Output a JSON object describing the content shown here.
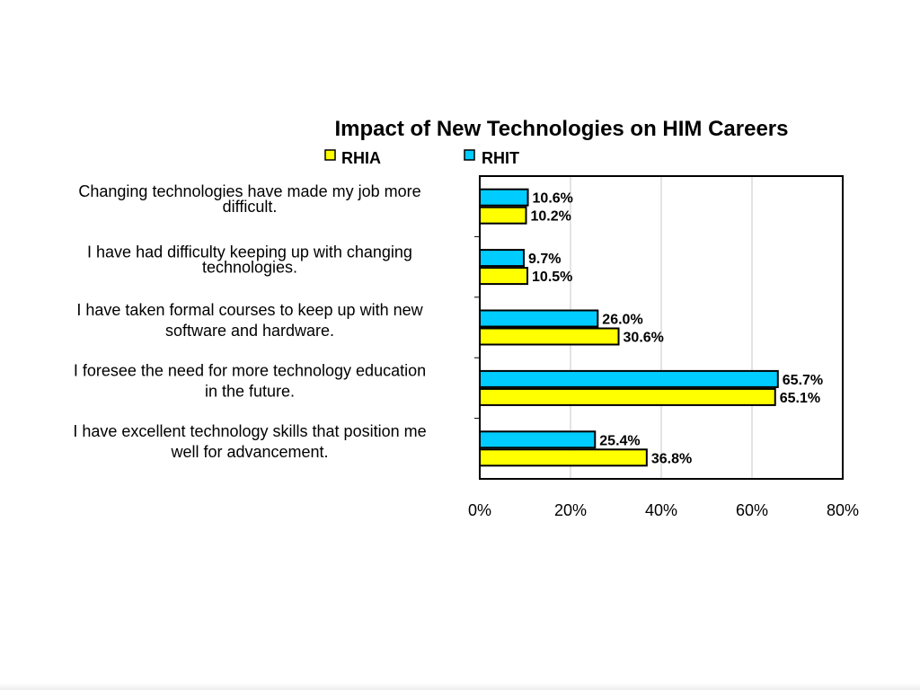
{
  "chart_data": {
    "type": "bar",
    "orientation": "horizontal",
    "title": "Impact of New Technologies on HIM Careers",
    "xlabel": "",
    "ylabel": "",
    "xlim": [
      0,
      80
    ],
    "x_ticks": [
      0,
      20,
      40,
      60,
      80
    ],
    "x_tick_labels": [
      "0%",
      "20%",
      "40%",
      "60%",
      "80%"
    ],
    "value_suffix": "%",
    "grid": "vertical gridlines",
    "legend_position": "top",
    "categories": [
      [
        "Changing technologies have made my job more",
        "difficult."
      ],
      [
        "I have had difficulty keeping up with changing",
        "technologies."
      ],
      [
        "I have taken formal courses to keep up with new",
        "software and hardware."
      ],
      [
        "I foresee the need for more technology education",
        "in the future."
      ],
      [
        "I have excellent technology skills that position me",
        "well for advancement."
      ]
    ],
    "series": [
      {
        "name": "RHIA",
        "color": "#ffff00",
        "values": [
          10.2,
          10.5,
          30.6,
          65.1,
          36.8
        ],
        "labels": [
          "10.2%",
          "10.5%",
          "30.6%",
          "65.1%",
          "36.8%"
        ]
      },
      {
        "name": "RHIT",
        "color": "#00ccff",
        "values": [
          10.6,
          9.7,
          26.0,
          65.7,
          25.4
        ],
        "labels": [
          "10.6%",
          "9.7%",
          "26.0%",
          "65.7%",
          "25.4%"
        ]
      }
    ]
  }
}
